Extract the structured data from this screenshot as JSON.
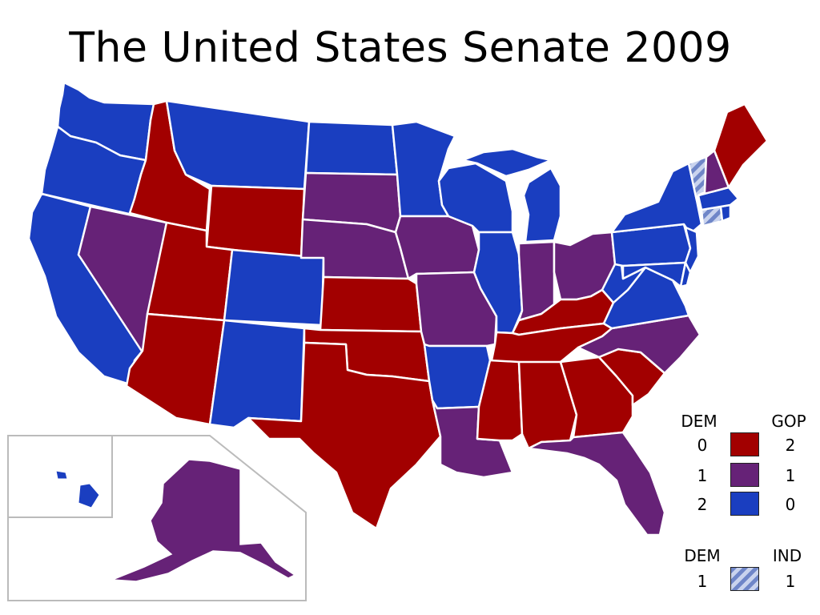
{
  "title": "The United States Senate 2009",
  "colors": {
    "dem2": "#1a3ec0",
    "split": "#662277",
    "gop2": "#a20000",
    "ind": "#8ea3d6",
    "stroke": "#ffffff"
  },
  "legend": {
    "dem_header": "DEM",
    "gop_header": "GOP",
    "rows": [
      {
        "dem": "0",
        "gop": "2",
        "color_key": "gop2"
      },
      {
        "dem": "1",
        "gop": "1",
        "color_key": "split"
      },
      {
        "dem": "2",
        "gop": "0",
        "color_key": "dem2"
      }
    ],
    "ind_dem_header": "DEM",
    "ind_header": "IND",
    "ind_dem_value": "1",
    "ind_value": "1"
  },
  "states": {
    "WA": "dem2",
    "OR": "dem2",
    "CA": "dem2",
    "ID": "gop2",
    "NV": "split",
    "MT": "dem2",
    "WY": "gop2",
    "UT": "gop2",
    "AZ": "gop2",
    "CO": "dem2",
    "NM": "dem2",
    "ND": "dem2",
    "SD": "split",
    "NE": "split",
    "KS": "gop2",
    "OK": "gop2",
    "TX": "gop2",
    "MN": "dem2",
    "IA": "split",
    "MO": "split",
    "AR": "dem2",
    "LA": "split",
    "WI": "dem2",
    "IL": "dem2",
    "MI": "dem2",
    "IN": "split",
    "OH": "split",
    "KY": "gop2",
    "TN": "gop2",
    "MS": "gop2",
    "AL": "gop2",
    "GA": "gop2",
    "FL": "split",
    "SC": "gop2",
    "NC": "split",
    "VA": "dem2",
    "WV": "dem2",
    "PA": "dem2",
    "NY": "dem2",
    "NJ": "dem2",
    "DE": "dem2",
    "MD": "dem2",
    "CT": "ind",
    "RI": "dem2",
    "MA": "dem2",
    "VT": "ind",
    "NH": "split",
    "ME": "gop2",
    "AK": "split",
    "HI": "dem2"
  }
}
